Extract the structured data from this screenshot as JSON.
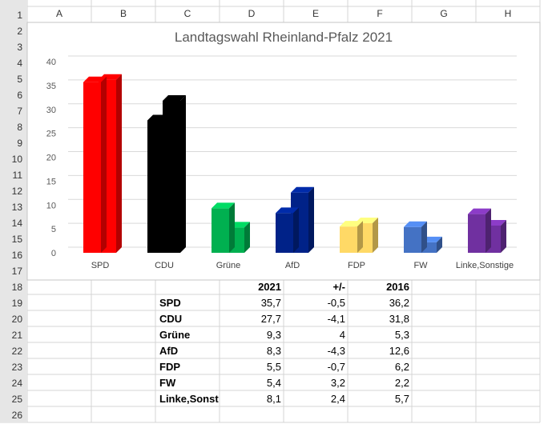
{
  "sheet": {
    "columns": [
      "A",
      "B",
      "C",
      "D",
      "E",
      "F",
      "G",
      "H"
    ],
    "rows": [
      "1",
      "2",
      "3",
      "4",
      "5",
      "6",
      "7",
      "8",
      "9",
      "10",
      "11",
      "12",
      "13",
      "14",
      "15",
      "16",
      "17",
      "18",
      "19",
      "20",
      "21",
      "22",
      "23",
      "24",
      "25",
      "26"
    ]
  },
  "table": {
    "headers": [
      "2021",
      "+/-",
      "2016"
    ],
    "rows": [
      {
        "party": "SPD",
        "v2021": "35,7",
        "diff": "-0,5",
        "v2016": "36,2"
      },
      {
        "party": "CDU",
        "v2021": "27,7",
        "diff": "-4,1",
        "v2016": "31,8"
      },
      {
        "party": "Grüne",
        "v2021": "9,3",
        "diff": "4",
        "v2016": "5,3"
      },
      {
        "party": "AfD",
        "v2021": "8,3",
        "diff": "-4,3",
        "v2016": "12,6"
      },
      {
        "party": "FDP",
        "v2021": "5,5",
        "diff": "-0,7",
        "v2016": "6,2"
      },
      {
        "party": "FW",
        "v2021": "5,4",
        "diff": "3,2",
        "v2016": "2,2"
      },
      {
        "party": "Linke,Sonstige",
        "v2021": "8,1",
        "diff": "2,4",
        "v2016": "5,7"
      }
    ]
  },
  "chart_data": {
    "type": "bar",
    "title": "Landtagswahl Rheinland-Pfalz 2021",
    "categories": [
      "SPD",
      "CDU",
      "Grüne",
      "AfD",
      "FDP",
      "FW",
      "Linke,Sonstige"
    ],
    "series": [
      {
        "values": [
          35.7,
          27.7,
          9.3,
          8.3,
          5.5,
          5.4,
          8.1
        ]
      },
      {
        "values": [
          36.2,
          31.8,
          5.3,
          12.6,
          6.2,
          2.2,
          5.7
        ]
      }
    ],
    "colors": [
      "#ff0000",
      "#000000",
      "#00b050",
      "#002288",
      "#ffd966",
      "#4472c4",
      "#7030a0"
    ],
    "yticks": [
      0,
      5,
      10,
      15,
      20,
      25,
      30,
      35,
      40
    ],
    "ylim": [
      0,
      40
    ],
    "grid": true,
    "legend": "none"
  }
}
